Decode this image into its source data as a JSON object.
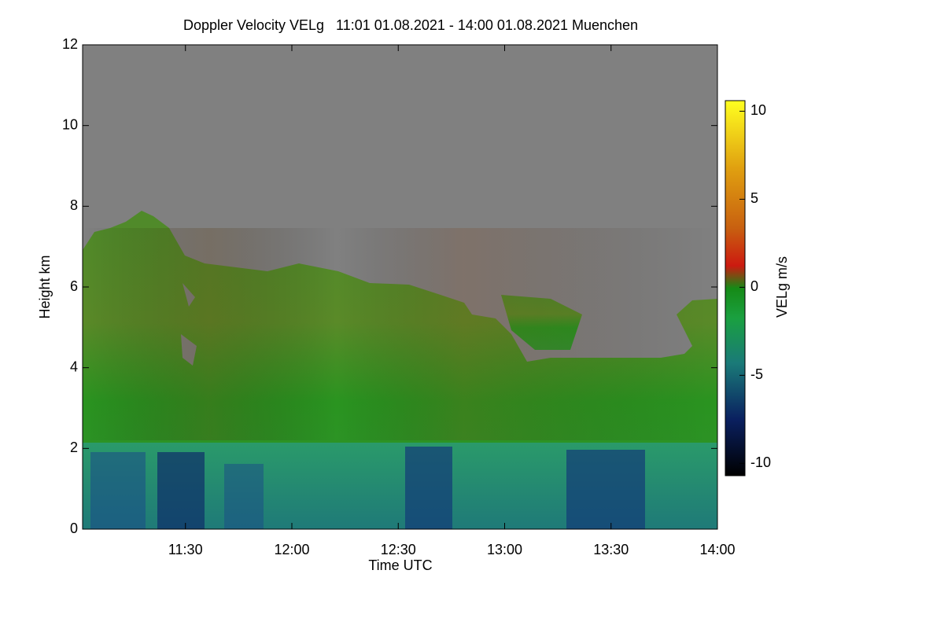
{
  "chart_data": {
    "type": "heatmap",
    "title": "Doppler Velocity VELg   11:01 01.08.2021 - 14:00 01.08.2021 Muenchen",
    "xlabel": "Time UTC",
    "ylabel": "Height km",
    "xlim": [
      661,
      840
    ],
    "xticks": [
      {
        "value": 690,
        "label": "11:30"
      },
      {
        "value": 720,
        "label": "12:00"
      },
      {
        "value": 750,
        "label": "12:30"
      },
      {
        "value": 780,
        "label": "13:00"
      },
      {
        "value": 810,
        "label": "13:30"
      },
      {
        "value": 840,
        "label": "14:00"
      }
    ],
    "ylim": [
      0,
      12
    ],
    "yticks": [
      0,
      2,
      4,
      6,
      8,
      10,
      12
    ],
    "colorbar_label": "VELg m/s",
    "clim": [
      -10.7,
      10.6
    ],
    "cticks": [
      -10,
      -5,
      0,
      5,
      10
    ]
  }
}
